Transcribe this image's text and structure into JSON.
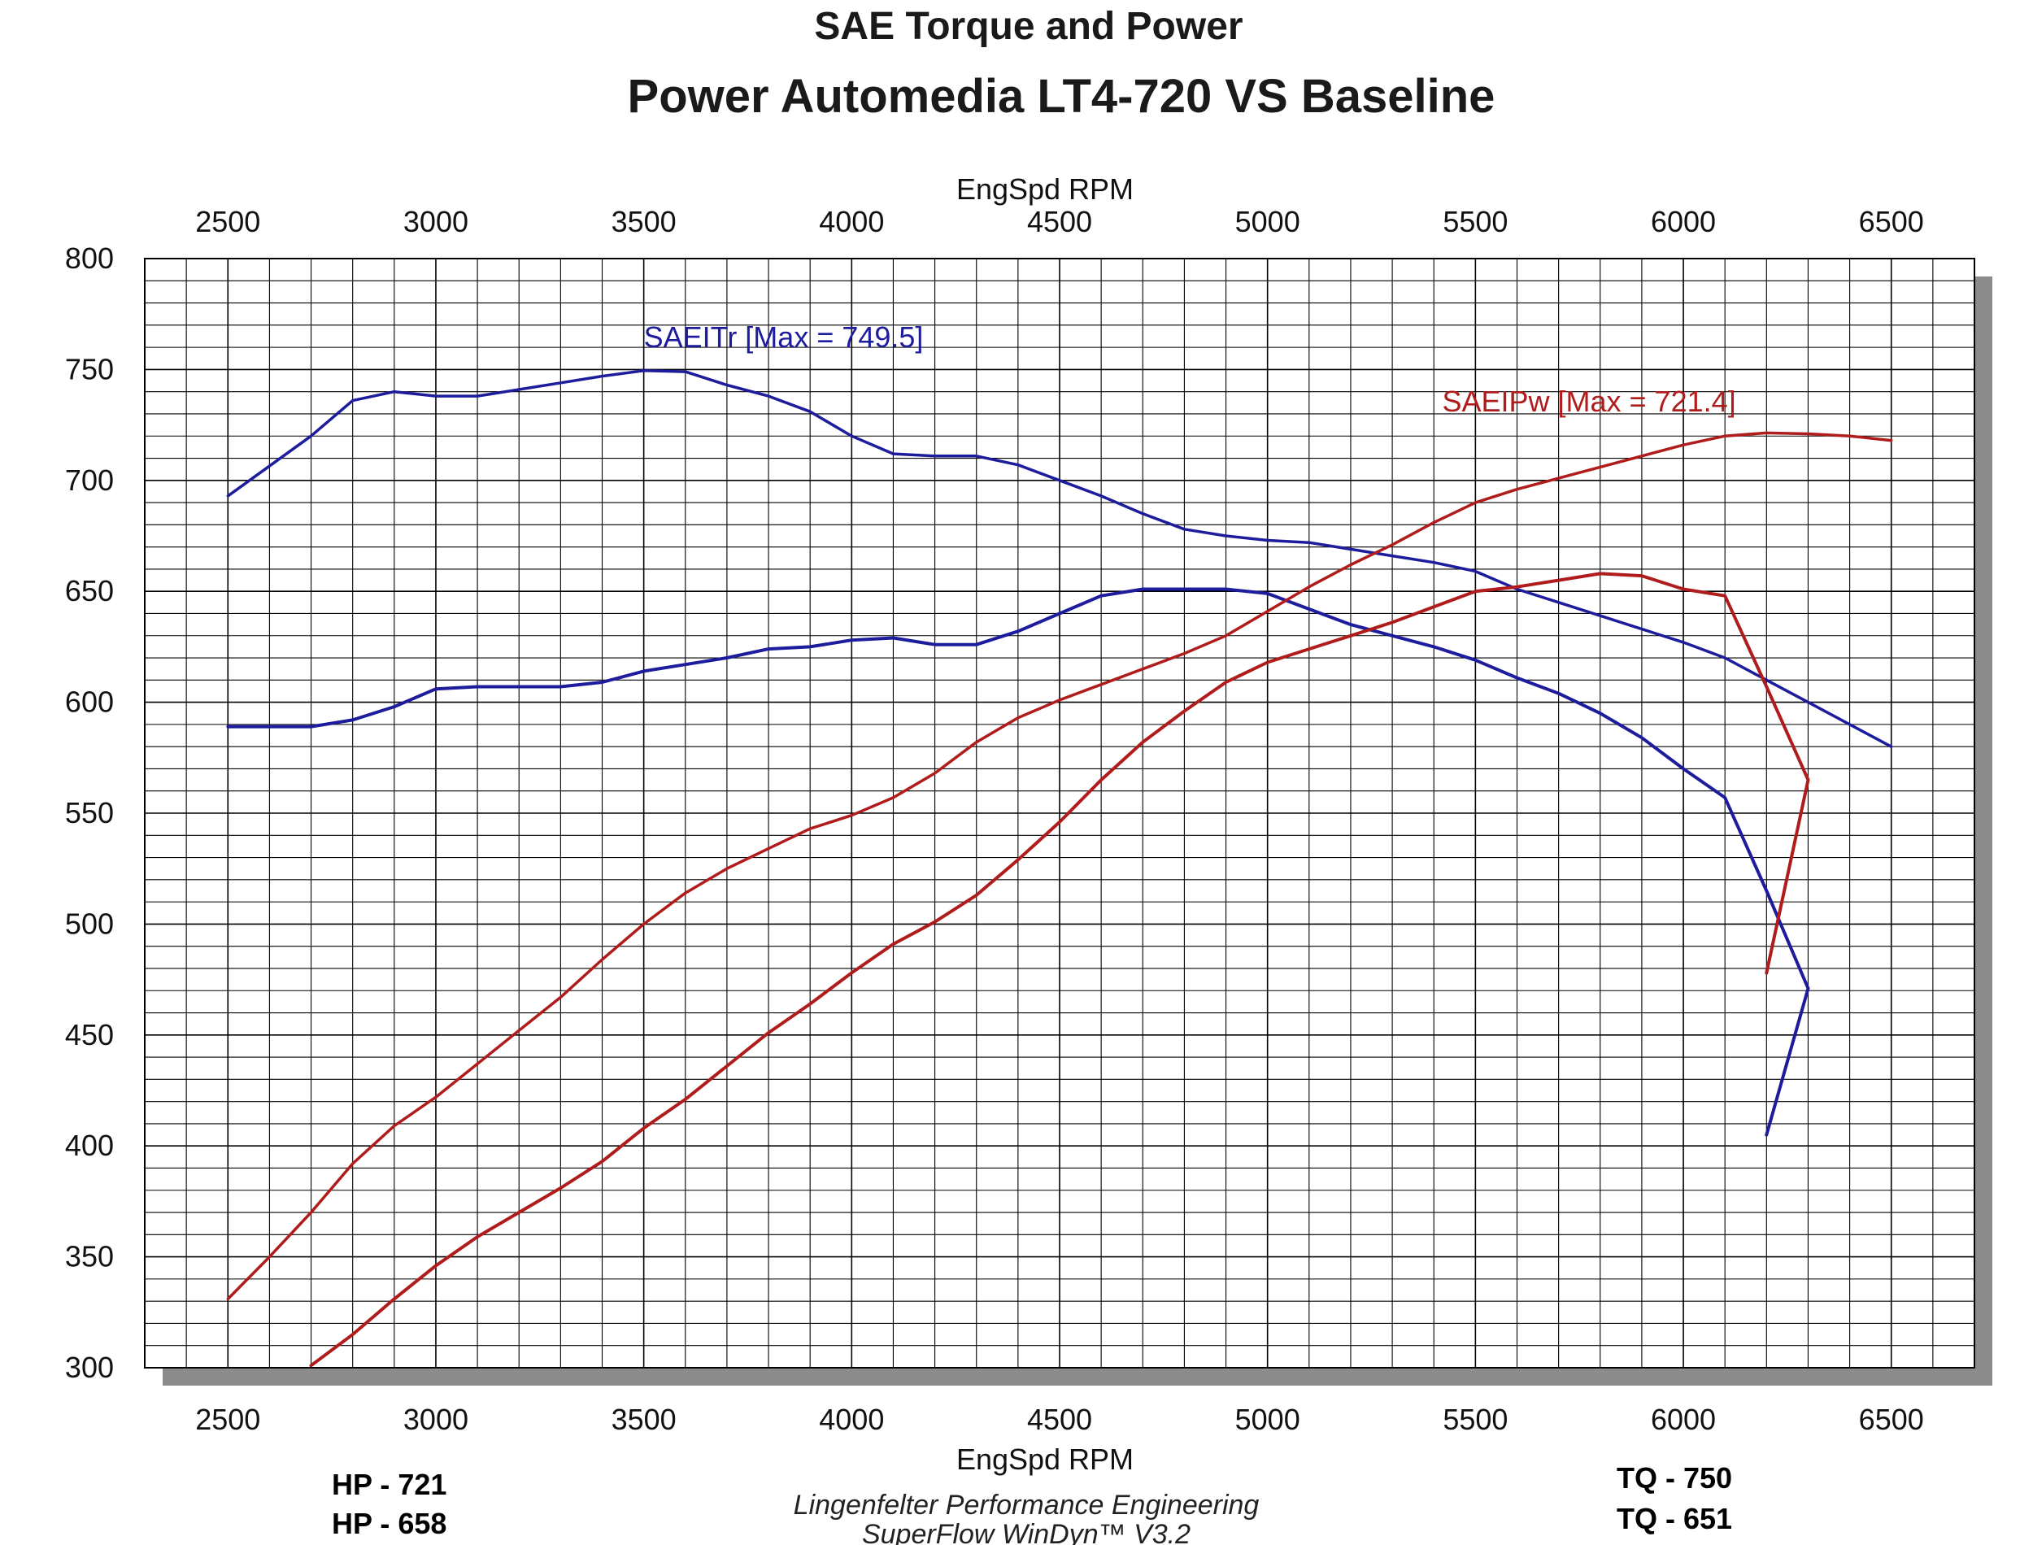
{
  "title": "SAE Torque and Power",
  "subtitle": "Power Automedia LT4-720 VS Baseline",
  "footer": {
    "credit_line1": "Lingenfelter Performance Engineering",
    "credit_line2": "SuperFlow WinDyn™ V3.2",
    "hp_labels": [
      "HP - 721",
      "HP - 658"
    ],
    "tq_labels": [
      "TQ - 750",
      "TQ - 651"
    ]
  },
  "colors": {
    "torque": "#1c1c9c",
    "power": "#b01c1c",
    "grid": "#000000",
    "shadow": "#8c8c8c"
  },
  "chart_data": {
    "type": "line",
    "xlabel_top": "EngSpd RPM",
    "xlabel_bottom": "EngSpd RPM",
    "xlim": [
      2300,
      6700
    ],
    "ylim": [
      300,
      800
    ],
    "x_ticks": [
      2500,
      3000,
      3500,
      4000,
      4500,
      5000,
      5500,
      6000,
      6500
    ],
    "y_ticks": [
      300,
      350,
      400,
      450,
      500,
      550,
      600,
      650,
      700,
      750,
      800
    ],
    "grid": true,
    "annotations": [
      {
        "text": "SAEITr [Max = 749.5]",
        "series": "torque",
        "x": 3500,
        "y": 760
      },
      {
        "text": "SAEIPw [Max = 721.4]",
        "series": "power",
        "x": 5420,
        "y": 731
      }
    ],
    "series": [
      {
        "role": "torque",
        "width": 3.5,
        "x": [
          2500,
          2700,
          2800,
          2900,
          3000,
          3100,
          3200,
          3300,
          3400,
          3500,
          3600,
          3700,
          3800,
          3900,
          4000,
          4100,
          4200,
          4300,
          4400,
          4500,
          4600,
          4700,
          4800,
          4900,
          5000,
          5100,
          5200,
          5300,
          5400,
          5500,
          5600,
          5700,
          5800,
          5900,
          6000,
          6100,
          6200,
          6300,
          6400,
          6500
        ],
        "y": [
          693,
          720,
          736,
          740,
          738,
          738,
          741,
          744,
          747,
          749.5,
          749,
          743,
          738,
          731,
          720,
          712,
          711,
          711,
          707,
          700,
          693,
          685,
          678,
          675,
          673,
          672,
          669,
          666,
          663,
          659,
          651,
          645,
          639,
          633,
          627,
          620,
          610,
          600,
          590,
          580
        ]
      },
      {
        "role": "torque",
        "width": 4,
        "x": [
          2500,
          2700,
          2800,
          2900,
          3000,
          3100,
          3200,
          3300,
          3400,
          3500,
          3600,
          3700,
          3800,
          3900,
          4000,
          4100,
          4200,
          4300,
          4400,
          4500,
          4600,
          4700,
          4800,
          4900,
          5000,
          5100,
          5200,
          5300,
          5400,
          5500,
          5600,
          5700,
          5800,
          5900,
          6000,
          6100,
          6200,
          6300,
          6200
        ],
        "y": [
          589,
          589,
          592,
          598,
          606,
          607,
          607,
          607,
          609,
          614,
          617,
          620,
          624,
          625,
          628,
          629,
          626,
          626,
          632,
          640,
          648,
          651,
          651,
          651,
          649,
          642,
          635,
          630,
          625,
          619,
          611,
          604,
          595,
          584,
          570,
          557,
          515,
          471,
          405
        ]
      },
      {
        "role": "power",
        "width": 3.5,
        "x": [
          2500,
          2600,
          2700,
          2800,
          2900,
          3000,
          3100,
          3200,
          3300,
          3400,
          3500,
          3600,
          3700,
          3800,
          3900,
          4000,
          4100,
          4200,
          4300,
          4400,
          4500,
          4600,
          4700,
          4800,
          4900,
          5000,
          5100,
          5200,
          5300,
          5400,
          5500,
          5600,
          5700,
          5800,
          5900,
          6000,
          6100,
          6200,
          6300,
          6400,
          6500
        ],
        "y": [
          331,
          350,
          370,
          392,
          409,
          422,
          437,
          452,
          467,
          484,
          500,
          514,
          525,
          534,
          543,
          549,
          557,
          568,
          582,
          593,
          601,
          608,
          615,
          622,
          630,
          641,
          652,
          662,
          671,
          681,
          690,
          696,
          701,
          706,
          711,
          716,
          720,
          721.4,
          721,
          720,
          718
        ]
      },
      {
        "role": "power",
        "width": 4,
        "x": [
          2700,
          2800,
          2900,
          3000,
          3100,
          3200,
          3300,
          3400,
          3500,
          3600,
          3700,
          3800,
          3900,
          4000,
          4100,
          4200,
          4300,
          4400,
          4500,
          4600,
          4700,
          4800,
          4900,
          5000,
          5100,
          5200,
          5300,
          5400,
          5500,
          5600,
          5700,
          5800,
          5900,
          6000,
          6100,
          6200,
          6300,
          6200
        ],
        "y": [
          301,
          315,
          331,
          346,
          359,
          370,
          381,
          393,
          408,
          421,
          436,
          451,
          464,
          478,
          491,
          501,
          513,
          529,
          546,
          565,
          582,
          596,
          609,
          618,
          624,
          630,
          636,
          643,
          650,
          652,
          655,
          658,
          657,
          651,
          648,
          607,
          565,
          478
        ]
      }
    ]
  }
}
